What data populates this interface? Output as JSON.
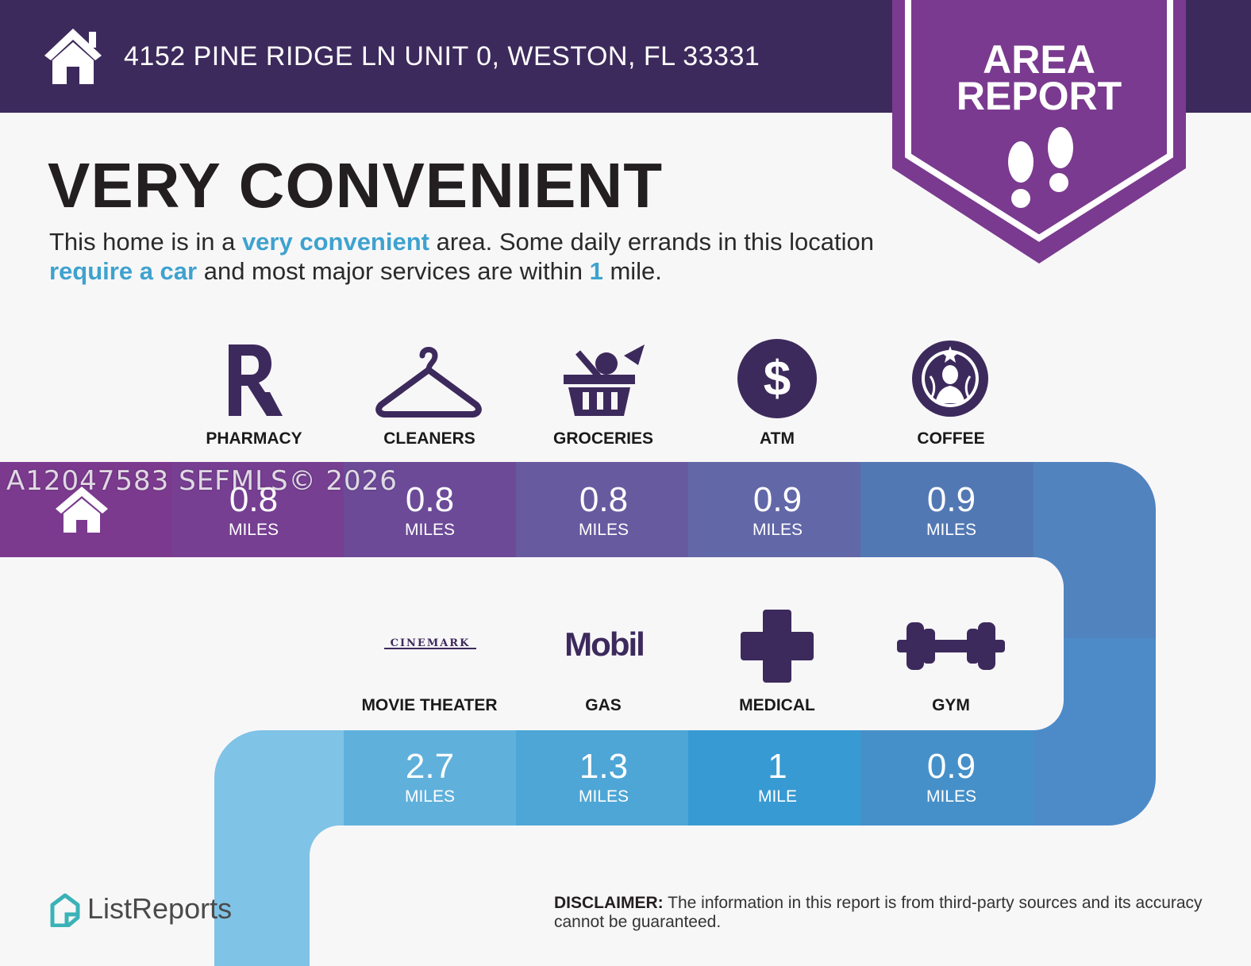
{
  "header": {
    "address": "4152 PINE RIDGE LN UNIT 0, WESTON, FL 33331"
  },
  "badge": {
    "line1": "AREA",
    "line2": "REPORT"
  },
  "headline": "VERY CONVENIENT",
  "summary": {
    "p1": "This home is in a ",
    "h1": "very convenient",
    "p2": " area. Some daily errands in this location ",
    "h2": "require a car",
    "p3": " and most major services are within ",
    "h3": "1",
    "p4": " mile."
  },
  "services_top": [
    {
      "label": "PHARMACY",
      "icon": "rx-icon",
      "distance": "0.8",
      "unit": "MILES"
    },
    {
      "label": "CLEANERS",
      "icon": "hanger-icon",
      "distance": "0.8",
      "unit": "MILES"
    },
    {
      "label": "GROCERIES",
      "icon": "grocery-basket-icon",
      "distance": "0.8",
      "unit": "MILES"
    },
    {
      "label": "ATM",
      "icon": "dollar-icon",
      "distance": "0.9",
      "unit": "MILES"
    },
    {
      "label": "COFFEE",
      "icon": "starbucks-logo-icon",
      "distance": "0.9",
      "unit": "MILES"
    }
  ],
  "services_bottom": [
    {
      "label": "MOVIE THEATER",
      "icon": "cinemark-logo-icon",
      "logo_text": "CINEMARK",
      "distance": "2.7",
      "unit": "MILES"
    },
    {
      "label": "GAS",
      "icon": "mobil-logo-icon",
      "logo_text": "Mobil",
      "distance": "1.3",
      "unit": "MILES"
    },
    {
      "label": "MEDICAL",
      "icon": "medical-cross-icon",
      "distance": "1",
      "unit": "MILE"
    },
    {
      "label": "GYM",
      "icon": "dumbbell-icon",
      "distance": "0.9",
      "unit": "MILES"
    }
  ],
  "watermark": "A12047583  SEFMLS© 2026",
  "footer": {
    "brand": "ListReports",
    "disclaimer_label": "DISCLAIMER:",
    "disclaimer_text": " The information in this report is from third-party sources and its accuracy cannot be guaranteed."
  },
  "colors": {
    "header": "#3d2a5c",
    "badge": "#7a3a8f",
    "icon": "#3d2a5c",
    "highlight": "#3ea2cf"
  }
}
